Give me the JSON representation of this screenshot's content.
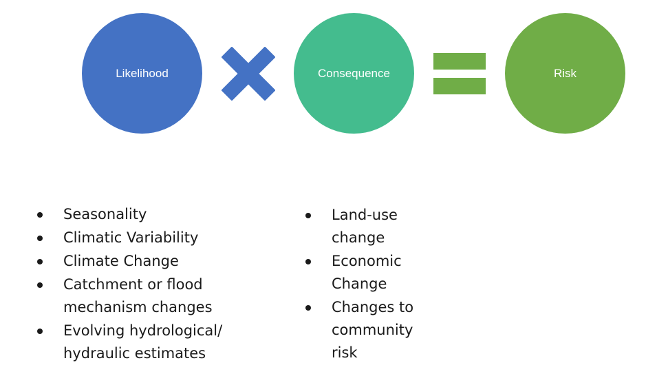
{
  "colors": {
    "likelihood": "#4472c4",
    "consequence": "#44bc8e",
    "risk": "#70ad47",
    "text": "#1a1a1a"
  },
  "diagram": {
    "likelihood_label": "Likelihood",
    "consequence_label": "Consequence",
    "risk_label": "Risk",
    "multiply_icon": "multiply-icon",
    "equals_icon": "equals-icon"
  },
  "likelihood_factors": [
    "Seasonality",
    "Climatic Variability",
    "Climate Change",
    "Catchment or flood mechanism changes",
    "Evolving hydrological/ hydraulic estimates"
  ],
  "consequence_factors": [
    "Land-use change",
    "Economic Change",
    "Changes to community risk"
  ]
}
